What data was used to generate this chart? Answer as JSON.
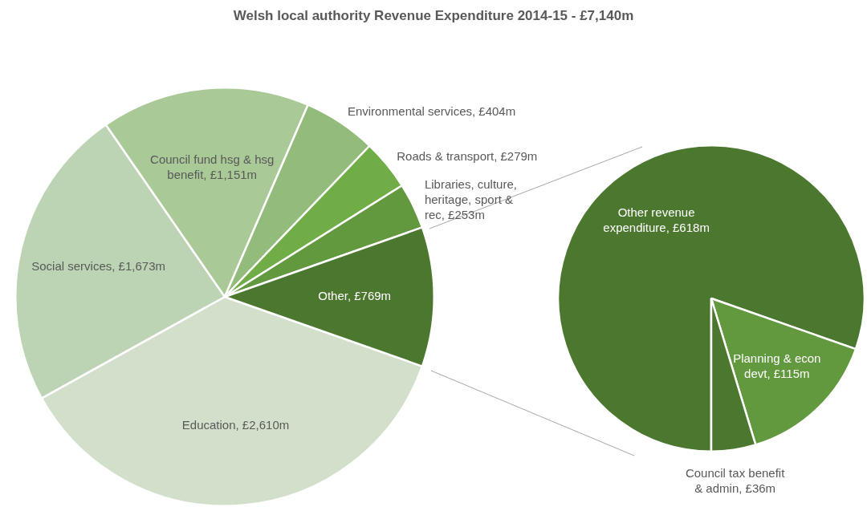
{
  "chart_data": [
    {
      "type": "pie",
      "title": "Welsh local authority Revenue Expenditure 2014-15 - £7,140m",
      "categories": [
        "Education",
        "Social services",
        "Council fund hsg & hsg benefit",
        "Environmental services",
        "Roads & transport",
        "Libraries, culture, heritage, sport & rec",
        "Other"
      ],
      "values": [
        2610,
        1673,
        1151,
        404,
        279,
        253,
        769
      ],
      "colors": [
        "#d2e0cb",
        "#bdd4b4",
        "#a9c997",
        "#93bb7c",
        "#70ad47",
        "#62993e",
        "#4b782e"
      ],
      "value_labels": [
        "£2,610m",
        "£1,673m",
        "£1,151m",
        "£404m",
        "£279m",
        "£253m",
        "£769m"
      ]
    },
    {
      "type": "pie",
      "categories": [
        "Other revenue expenditure",
        "Planning & econ devt",
        "Council tax benefit & admin"
      ],
      "values": [
        618,
        115,
        36
      ],
      "colors": [
        "#4b782e",
        "#62993e",
        "#4b782e"
      ],
      "value_labels": [
        "£618m",
        "£115m",
        "£36m"
      ]
    }
  ]
}
